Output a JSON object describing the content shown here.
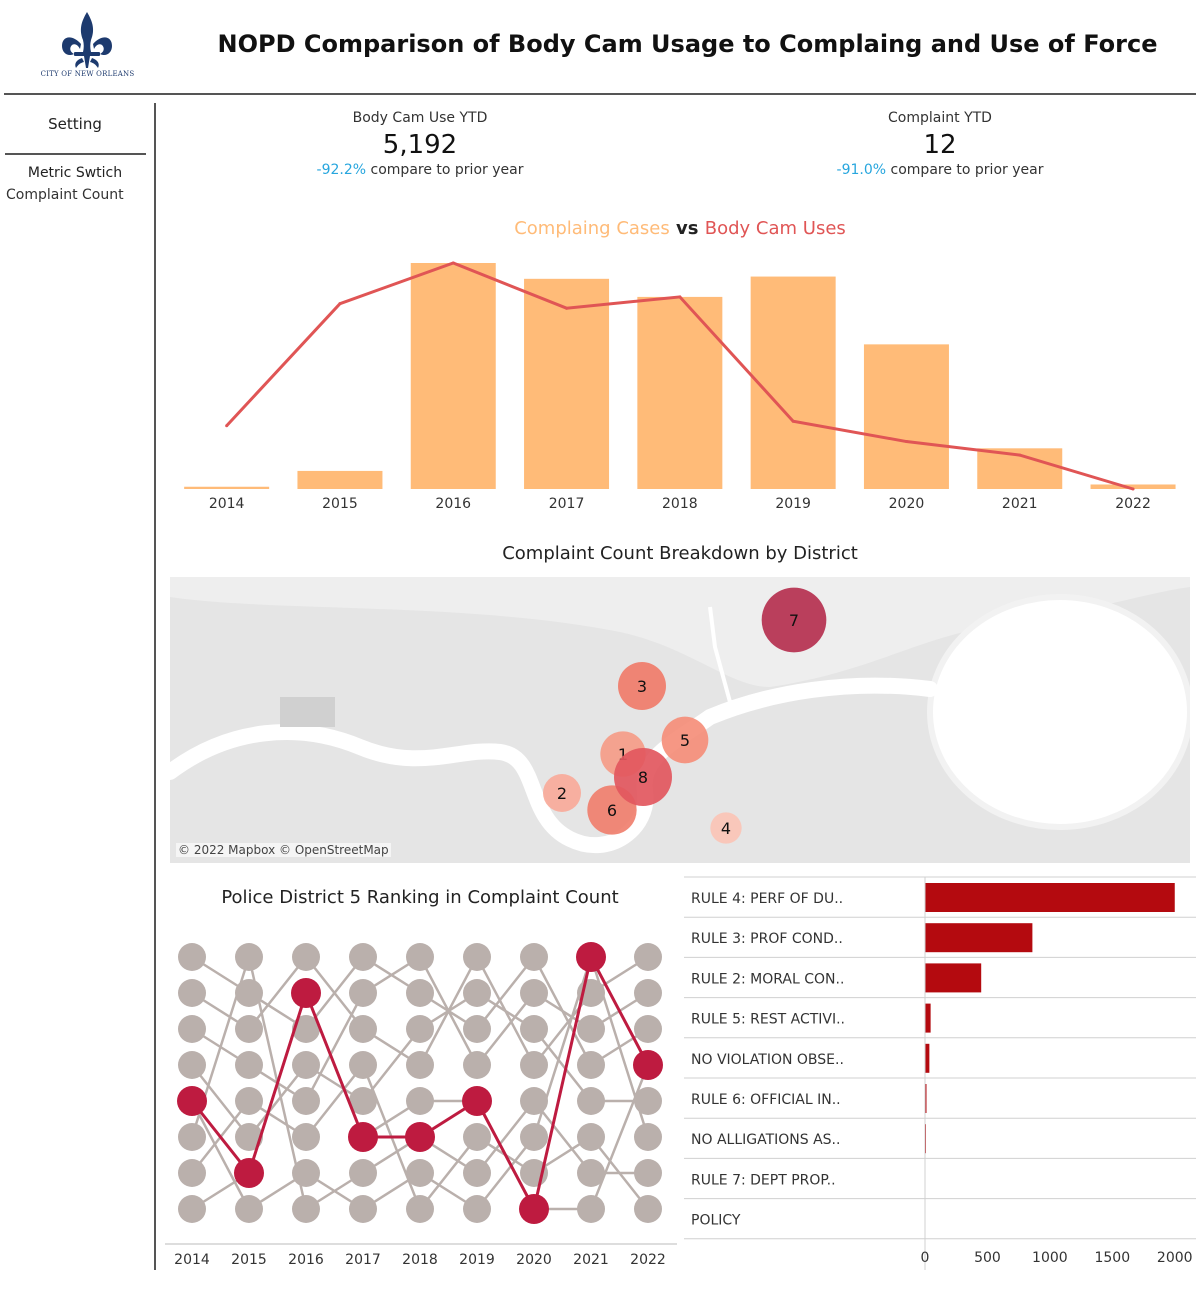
{
  "header": {
    "logo_caption": "CITY OF NEW ORLEANS",
    "title": "NOPD Comparison of Body Cam Usage to Complaing and Use of Force"
  },
  "sidebar": {
    "setting_label": "Setting",
    "metric_switch_label": "Metric Swtich",
    "metric_switch_value": "Complaint Count"
  },
  "kpis": {
    "bodycam": {
      "label": "Body Cam Use YTD",
      "value": "5,192",
      "delta": "-92.2%",
      "compare_text": " compare to prior year"
    },
    "complaint": {
      "label": "Complaint YTD",
      "value": "12",
      "delta": "-91.0%",
      "compare_text": " compare to prior year"
    }
  },
  "colors": {
    "bar": "#ffbb78",
    "line": "#e05555",
    "accent_blue": "#27a6de",
    "rank_highlight": "#be1b40",
    "rank_base": "#bab0ac",
    "rule_bar": "#b40a0f"
  },
  "combo_chart": {
    "title_part1": "Complaing Cases",
    "title_vs": " vs ",
    "title_part2": "Body Cam Uses"
  },
  "map_section": {
    "title": "Complaint Count Breakdown by District",
    "attribution": "© 2022 Mapbox © OpenStreetMap"
  },
  "bump_section": {
    "title": "Police District 5 Ranking in Complaint Count"
  },
  "chart_data": [
    {
      "type": "bar",
      "name": "complaint-vs-bodycam",
      "categories": [
        "2014",
        "2015",
        "2016",
        "2017",
        "2018",
        "2019",
        "2020",
        "2021",
        "2022"
      ],
      "series": [
        {
          "name": "Complaing Cases",
          "type": "bar",
          "values": [
            1,
            8,
            100,
            93,
            85,
            94,
            64,
            18,
            2
          ]
        },
        {
          "name": "Body Cam Uses",
          "type": "line",
          "values": [
            28,
            82,
            100,
            80,
            85,
            30,
            21,
            15,
            0
          ]
        }
      ],
      "ylim": [
        0,
        100
      ],
      "grid": false,
      "axis_values_shown": false
    },
    {
      "type": "scatter",
      "name": "district-map",
      "points": [
        {
          "label": "7",
          "value": 95,
          "color": "#b5304f"
        },
        {
          "label": "3",
          "value": 70,
          "color": "#f07c6a"
        },
        {
          "label": "5",
          "value": 68,
          "color": "#f58e7a"
        },
        {
          "label": "1",
          "value": 66,
          "color": "#f59c88"
        },
        {
          "label": "8",
          "value": 85,
          "color": "#e2575e"
        },
        {
          "label": "2",
          "value": 55,
          "color": "#f8aa9a"
        },
        {
          "label": "6",
          "value": 72,
          "color": "#f07f6e"
        },
        {
          "label": "4",
          "value": 45,
          "color": "#fbc4b6"
        }
      ]
    },
    {
      "type": "line",
      "name": "district-5-ranking",
      "categories": [
        "2014",
        "2015",
        "2016",
        "2017",
        "2018",
        "2019",
        "2020",
        "2021",
        "2022"
      ],
      "ranks": 8,
      "highlight_ranks": [
        5,
        7,
        2,
        6,
        6,
        5,
        8,
        1,
        4
      ]
    },
    {
      "type": "bar",
      "name": "rule-violations",
      "orientation": "horizontal",
      "categories": [
        "RULE 4: PERF OF DU..",
        "RULE 3: PROF COND..",
        "RULE 2: MORAL CON..",
        "RULE 5: REST ACTIVI..",
        "NO VIOLATION OBSE..",
        "RULE 6: OFFICIAL IN..",
        "NO ALLIGATIONS AS..",
        "RULE 7: DEPT PROP..",
        "POLICY"
      ],
      "values": [
        2000,
        860,
        450,
        45,
        35,
        12,
        8,
        2,
        1
      ],
      "xlim": [
        0,
        2050
      ],
      "xticks": [
        "0",
        "500",
        "1000",
        "1500",
        "2000"
      ]
    }
  ]
}
